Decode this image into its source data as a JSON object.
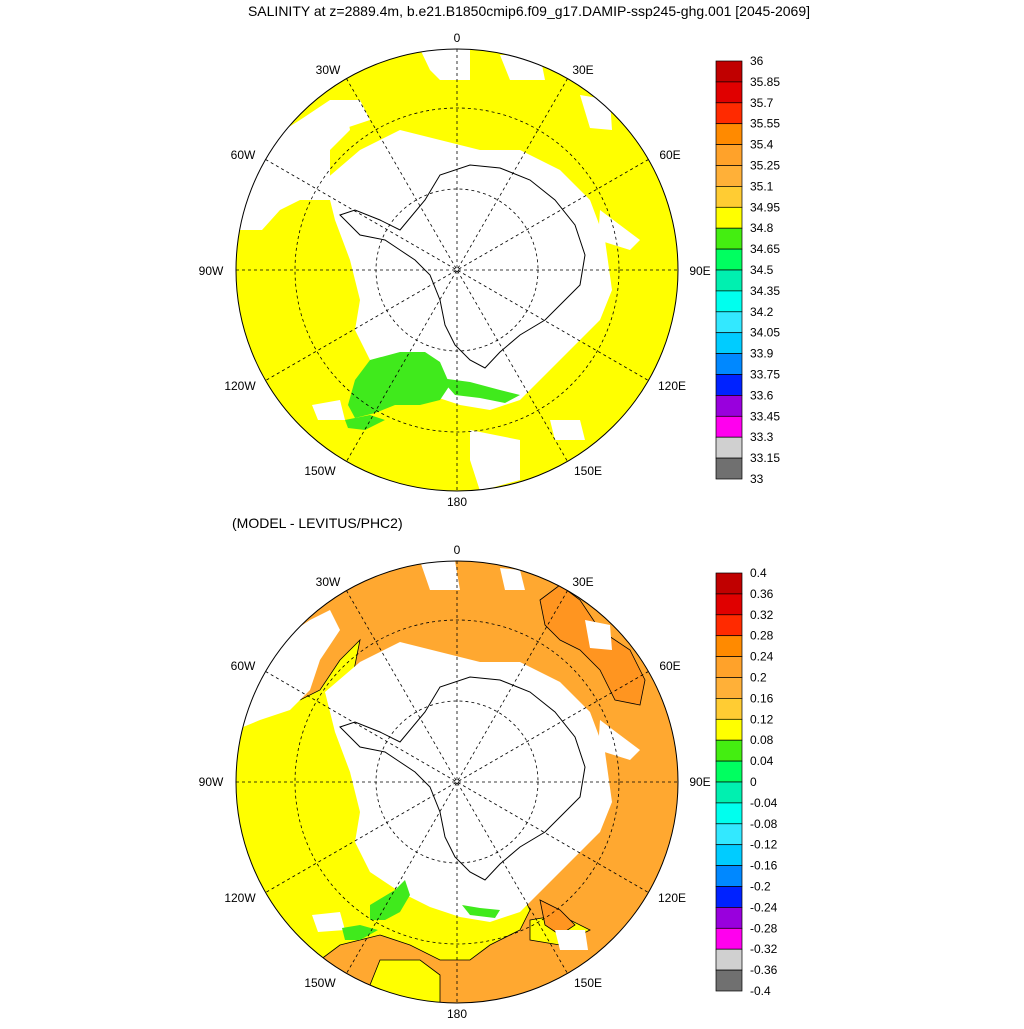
{
  "figure": {
    "title": "SALINITY at z=2889.4m, b.e21.B1850cmip6.f09_g17.DAMIP-ssp245-ghg.001 [2045-2069]",
    "subtitle": "(MODEL - LEVITUS/PHC2)",
    "colors": {
      "land": "#ffffff",
      "coast": "#000000"
    }
  },
  "panels": [
    {
      "name": "salinity-map",
      "longitude_labels": [
        "0",
        "30E",
        "60E",
        "90E",
        "120E",
        "150E",
        "180",
        "150W",
        "120W",
        "90W",
        "60W",
        "30W"
      ],
      "background_color": "#ffff00",
      "features": [
        {
          "name": "green-patch-ross-sea",
          "color": "#40ea1c"
        },
        {
          "name": "green-strip-ross-shelf",
          "color": "#40ea1c"
        }
      ],
      "colorbar": {
        "labels": [
          "36",
          "35.85",
          "35.7",
          "35.55",
          "35.4",
          "35.25",
          "35.1",
          "34.95",
          "34.8",
          "34.65",
          "34.5",
          "34.35",
          "34.2",
          "34.05",
          "33.9",
          "33.75",
          "33.6",
          "33.45",
          "33.3",
          "33.15",
          "33"
        ],
        "colors": [
          "#c00000",
          "#e00000",
          "#ff2a00",
          "#ff8a00",
          "#ffa22a",
          "#ffb038",
          "#ffcc33",
          "#ffff00",
          "#44ee11",
          "#00ff60",
          "#00f0b0",
          "#00ffee",
          "#33e8ff",
          "#00ccff",
          "#0088ff",
          "#0022ff",
          "#9900dd",
          "#ff00ee",
          "#d0d0d0",
          "#707070"
        ]
      }
    },
    {
      "name": "difference-map",
      "longitude_labels": [
        "0",
        "30E",
        "60E",
        "90E",
        "120E",
        "150E",
        "180",
        "150W",
        "120W",
        "90W",
        "60W",
        "30W"
      ],
      "background_color": "#ffa830",
      "features": [
        {
          "name": "yellow-region-pacific",
          "color": "#ffff00"
        },
        {
          "name": "orange-region-indian",
          "color": "#ffa830"
        },
        {
          "name": "darker-orange-patch-east",
          "color": "#ff9520"
        },
        {
          "name": "green-patch-ross-sea",
          "color": "#40ea1c"
        }
      ],
      "colorbar": {
        "labels": [
          "0.4",
          "0.36",
          "0.32",
          "0.28",
          "0.24",
          "0.2",
          "0.16",
          "0.12",
          "0.08",
          "0.04",
          "0",
          "-0.04",
          "-0.08",
          "-0.12",
          "-0.16",
          "-0.2",
          "-0.24",
          "-0.28",
          "-0.32",
          "-0.36",
          "-0.4"
        ],
        "colors": [
          "#c00000",
          "#e00000",
          "#ff2a00",
          "#ff8a00",
          "#ffa22a",
          "#ffb038",
          "#ffcc33",
          "#ffff00",
          "#44ee11",
          "#00ff60",
          "#00f0b0",
          "#00ffee",
          "#33e8ff",
          "#00ccff",
          "#0088ff",
          "#0022ff",
          "#9900dd",
          "#ff00ee",
          "#d0d0d0",
          "#707070"
        ]
      }
    }
  ]
}
